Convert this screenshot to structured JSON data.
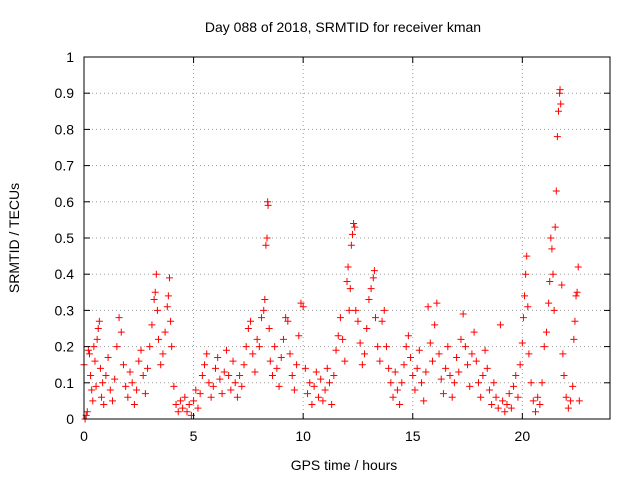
{
  "chart_data": {
    "type": "scatter",
    "title": "Day 088 of 2018, SRMTID for receiver kman",
    "xlabel": "GPS time / hours",
    "ylabel": "SRMTID / TECUs",
    "xlim": [
      0,
      24
    ],
    "ylim": [
      0,
      1
    ],
    "xticks": [
      0,
      5,
      10,
      15,
      20
    ],
    "xtick_labels": [
      "0",
      "5",
      "10",
      "15",
      "20"
    ],
    "yticks": [
      0,
      0.1,
      0.2,
      0.3,
      0.4,
      0.5,
      0.6,
      0.7,
      0.8,
      0.9,
      1
    ],
    "ytick_labels": [
      "0",
      "0.1",
      "0.2",
      "0.3",
      "0.4",
      "0.5",
      "0.6",
      "0.7",
      "0.8",
      "0.9",
      "1"
    ],
    "grid": true,
    "marker": "+",
    "series": [
      {
        "name": "SRMTID",
        "color": "#ff0000",
        "points": [
          [
            0.0,
            0.15
          ],
          [
            0.05,
            0.0
          ],
          [
            0.1,
            0.01
          ],
          [
            0.15,
            0.02
          ],
          [
            0.2,
            0.19
          ],
          [
            0.25,
            0.18
          ],
          [
            0.3,
            0.12
          ],
          [
            0.35,
            0.08
          ],
          [
            0.4,
            0.05
          ],
          [
            0.45,
            0.2
          ],
          [
            0.5,
            0.16
          ],
          [
            0.55,
            0.09
          ],
          [
            0.6,
            0.22
          ],
          [
            0.65,
            0.25
          ],
          [
            0.7,
            0.27
          ],
          [
            0.75,
            0.14
          ],
          [
            0.8,
            0.06
          ],
          [
            0.85,
            0.1
          ],
          [
            0.9,
            0.04
          ],
          [
            1.0,
            0.12
          ],
          [
            1.1,
            0.17
          ],
          [
            1.2,
            0.08
          ],
          [
            1.3,
            0.05
          ],
          [
            1.4,
            0.11
          ],
          [
            1.5,
            0.2
          ],
          [
            1.6,
            0.28
          ],
          [
            1.7,
            0.24
          ],
          [
            1.8,
            0.15
          ],
          [
            1.9,
            0.09
          ],
          [
            2.0,
            0.06
          ],
          [
            2.1,
            0.13
          ],
          [
            2.2,
            0.1
          ],
          [
            2.3,
            0.04
          ],
          [
            2.4,
            0.08
          ],
          [
            2.5,
            0.16
          ],
          [
            2.6,
            0.19
          ],
          [
            2.7,
            0.12
          ],
          [
            2.8,
            0.07
          ],
          [
            2.9,
            0.14
          ],
          [
            3.0,
            0.2
          ],
          [
            3.1,
            0.26
          ],
          [
            3.2,
            0.33
          ],
          [
            3.25,
            0.35
          ],
          [
            3.3,
            0.4
          ],
          [
            3.35,
            0.3
          ],
          [
            3.4,
            0.22
          ],
          [
            3.5,
            0.15
          ],
          [
            3.6,
            0.18
          ],
          [
            3.7,
            0.24
          ],
          [
            3.8,
            0.31
          ],
          [
            3.85,
            0.34
          ],
          [
            3.9,
            0.39
          ],
          [
            3.95,
            0.27
          ],
          [
            4.0,
            0.2
          ],
          [
            4.1,
            0.09
          ],
          [
            4.2,
            0.04
          ],
          [
            4.3,
            0.02
          ],
          [
            4.4,
            0.05
          ],
          [
            4.5,
            0.03
          ],
          [
            4.6,
            0.06
          ],
          [
            4.7,
            0.02
          ],
          [
            4.8,
            0.04
          ],
          [
            4.9,
            0.01
          ],
          [
            5.0,
            0.05
          ],
          [
            5.1,
            0.08
          ],
          [
            5.2,
            0.03
          ],
          [
            5.3,
            0.07
          ],
          [
            5.4,
            0.12
          ],
          [
            5.5,
            0.15
          ],
          [
            5.6,
            0.18
          ],
          [
            5.7,
            0.1
          ],
          [
            5.8,
            0.06
          ],
          [
            5.9,
            0.09
          ],
          [
            6.0,
            0.14
          ],
          [
            6.1,
            0.17
          ],
          [
            6.2,
            0.11
          ],
          [
            6.3,
            0.07
          ],
          [
            6.4,
            0.13
          ],
          [
            6.5,
            0.19
          ],
          [
            6.6,
            0.12
          ],
          [
            6.7,
            0.08
          ],
          [
            6.8,
            0.16
          ],
          [
            6.9,
            0.1
          ],
          [
            7.0,
            0.06
          ],
          [
            7.1,
            0.12
          ],
          [
            7.2,
            0.09
          ],
          [
            7.3,
            0.15
          ],
          [
            7.4,
            0.2
          ],
          [
            7.5,
            0.25
          ],
          [
            7.6,
            0.27
          ],
          [
            7.7,
            0.18
          ],
          [
            7.8,
            0.13
          ],
          [
            7.9,
            0.22
          ],
          [
            8.0,
            0.2
          ],
          [
            8.1,
            0.28
          ],
          [
            8.2,
            0.3
          ],
          [
            8.25,
            0.33
          ],
          [
            8.3,
            0.48
          ],
          [
            8.35,
            0.5
          ],
          [
            8.38,
            0.6
          ],
          [
            8.4,
            0.59
          ],
          [
            8.45,
            0.25
          ],
          [
            8.5,
            0.16
          ],
          [
            8.6,
            0.12
          ],
          [
            8.7,
            0.2
          ],
          [
            8.8,
            0.14
          ],
          [
            8.9,
            0.09
          ],
          [
            9.0,
            0.17
          ],
          [
            9.1,
            0.22
          ],
          [
            9.2,
            0.28
          ],
          [
            9.3,
            0.27
          ],
          [
            9.4,
            0.18
          ],
          [
            9.5,
            0.12
          ],
          [
            9.6,
            0.08
          ],
          [
            9.7,
            0.15
          ],
          [
            9.8,
            0.23
          ],
          [
            9.9,
            0.32
          ],
          [
            10.0,
            0.31
          ],
          [
            10.1,
            0.14
          ],
          [
            10.2,
            0.07
          ],
          [
            10.3,
            0.1
          ],
          [
            10.4,
            0.04
          ],
          [
            10.5,
            0.09
          ],
          [
            10.6,
            0.13
          ],
          [
            10.7,
            0.06
          ],
          [
            10.8,
            0.11
          ],
          [
            10.9,
            0.05
          ],
          [
            11.0,
            0.08
          ],
          [
            11.1,
            0.14
          ],
          [
            11.2,
            0.1
          ],
          [
            11.3,
            0.04
          ],
          [
            11.4,
            0.12
          ],
          [
            11.5,
            0.19
          ],
          [
            11.6,
            0.23
          ],
          [
            11.7,
            0.28
          ],
          [
            11.8,
            0.22
          ],
          [
            11.9,
            0.16
          ],
          [
            12.0,
            0.38
          ],
          [
            12.05,
            0.42
          ],
          [
            12.1,
            0.3
          ],
          [
            12.15,
            0.36
          ],
          [
            12.2,
            0.48
          ],
          [
            12.25,
            0.51
          ],
          [
            12.3,
            0.54
          ],
          [
            12.35,
            0.53
          ],
          [
            12.4,
            0.3
          ],
          [
            12.5,
            0.27
          ],
          [
            12.6,
            0.21
          ],
          [
            12.7,
            0.15
          ],
          [
            12.8,
            0.18
          ],
          [
            12.9,
            0.25
          ],
          [
            13.0,
            0.33
          ],
          [
            13.1,
            0.36
          ],
          [
            13.2,
            0.39
          ],
          [
            13.25,
            0.41
          ],
          [
            13.3,
            0.28
          ],
          [
            13.4,
            0.2
          ],
          [
            13.5,
            0.16
          ],
          [
            13.6,
            0.27
          ],
          [
            13.7,
            0.3
          ],
          [
            13.8,
            0.2
          ],
          [
            13.9,
            0.14
          ],
          [
            14.0,
            0.1
          ],
          [
            14.1,
            0.06
          ],
          [
            14.2,
            0.13
          ],
          [
            14.3,
            0.08
          ],
          [
            14.4,
            0.04
          ],
          [
            14.5,
            0.1
          ],
          [
            14.6,
            0.15
          ],
          [
            14.7,
            0.2
          ],
          [
            14.8,
            0.23
          ],
          [
            14.9,
            0.17
          ],
          [
            15.0,
            0.12
          ],
          [
            15.1,
            0.08
          ],
          [
            15.2,
            0.14
          ],
          [
            15.3,
            0.19
          ],
          [
            15.4,
            0.1
          ],
          [
            15.5,
            0.05
          ],
          [
            15.6,
            0.13
          ],
          [
            15.7,
            0.31
          ],
          [
            15.8,
            0.21
          ],
          [
            15.9,
            0.16
          ],
          [
            16.0,
            0.26
          ],
          [
            16.1,
            0.32
          ],
          [
            16.2,
            0.18
          ],
          [
            16.3,
            0.11
          ],
          [
            16.4,
            0.07
          ],
          [
            16.5,
            0.14
          ],
          [
            16.6,
            0.2
          ],
          [
            16.7,
            0.12
          ],
          [
            16.8,
            0.06
          ],
          [
            16.9,
            0.1
          ],
          [
            17.0,
            0.17
          ],
          [
            17.1,
            0.13
          ],
          [
            17.2,
            0.22
          ],
          [
            17.3,
            0.29
          ],
          [
            17.4,
            0.2
          ],
          [
            17.5,
            0.15
          ],
          [
            17.6,
            0.09
          ],
          [
            17.7,
            0.18
          ],
          [
            17.8,
            0.24
          ],
          [
            17.9,
            0.16
          ],
          [
            18.0,
            0.1
          ],
          [
            18.1,
            0.06
          ],
          [
            18.2,
            0.12
          ],
          [
            18.3,
            0.19
          ],
          [
            18.4,
            0.14
          ],
          [
            18.5,
            0.08
          ],
          [
            18.6,
            0.04
          ],
          [
            18.7,
            0.1
          ],
          [
            18.8,
            0.06
          ],
          [
            18.9,
            0.03
          ],
          [
            19.0,
            0.26
          ],
          [
            19.1,
            0.05
          ],
          [
            19.2,
            0.02
          ],
          [
            19.3,
            0.04
          ],
          [
            19.4,
            0.07
          ],
          [
            19.5,
            0.03
          ],
          [
            19.6,
            0.09
          ],
          [
            19.7,
            0.12
          ],
          [
            19.8,
            0.06
          ],
          [
            19.9,
            0.15
          ],
          [
            20.0,
            0.21
          ],
          [
            20.05,
            0.28
          ],
          [
            20.1,
            0.34
          ],
          [
            20.15,
            0.4
          ],
          [
            20.2,
            0.45
          ],
          [
            20.25,
            0.31
          ],
          [
            20.3,
            0.18
          ],
          [
            20.4,
            0.1
          ],
          [
            20.5,
            0.05
          ],
          [
            20.6,
            0.02
          ],
          [
            20.7,
            0.06
          ],
          [
            20.8,
            0.04
          ],
          [
            20.9,
            0.1
          ],
          [
            21.0,
            0.2
          ],
          [
            21.1,
            0.24
          ],
          [
            21.2,
            0.32
          ],
          [
            21.25,
            0.38
          ],
          [
            21.3,
            0.5
          ],
          [
            21.35,
            0.47
          ],
          [
            21.4,
            0.4
          ],
          [
            21.45,
            0.3
          ],
          [
            21.5,
            0.53
          ],
          [
            21.55,
            0.63
          ],
          [
            21.6,
            0.78
          ],
          [
            21.65,
            0.85
          ],
          [
            21.7,
            0.9
          ],
          [
            21.72,
            0.91
          ],
          [
            21.75,
            0.87
          ],
          [
            21.8,
            0.37
          ],
          [
            21.85,
            0.18
          ],
          [
            21.9,
            0.12
          ],
          [
            22.0,
            0.06
          ],
          [
            22.1,
            0.03
          ],
          [
            22.2,
            0.05
          ],
          [
            22.3,
            0.09
          ],
          [
            22.35,
            0.22
          ],
          [
            22.4,
            0.27
          ],
          [
            22.45,
            0.34
          ],
          [
            22.5,
            0.35
          ],
          [
            22.55,
            0.42
          ],
          [
            22.6,
            0.05
          ]
        ]
      }
    ]
  }
}
